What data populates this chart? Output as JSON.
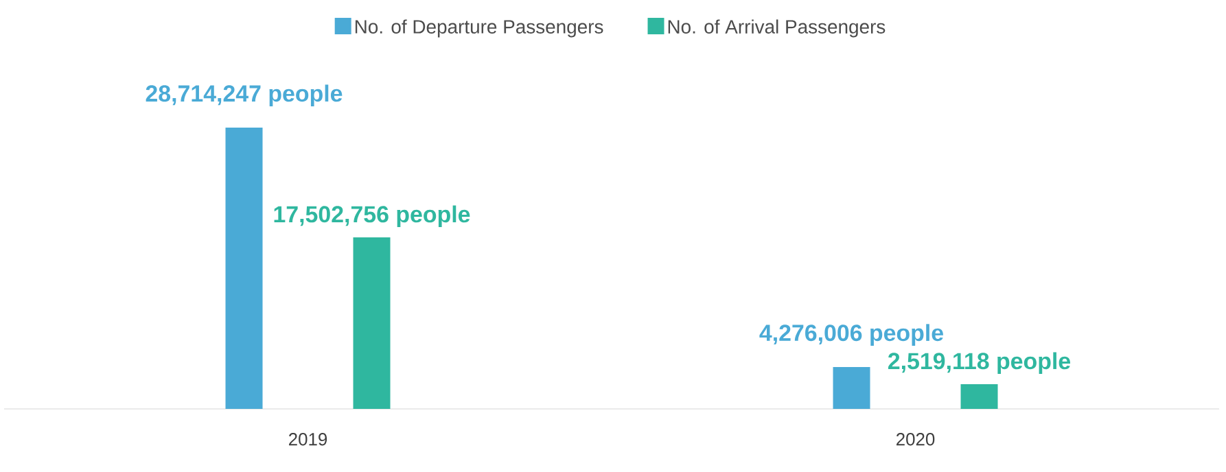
{
  "chart_data": {
    "type": "bar",
    "categories": [
      "2019",
      "2020"
    ],
    "series": [
      {
        "name": "No. of Departure Passengers",
        "color": "#4aaad6",
        "values": [
          28714247,
          4276006
        ],
        "value_labels": [
          "28,714,247 people",
          "4,276,006 people"
        ]
      },
      {
        "name": "No. of Arrival Passengers",
        "color": "#2fb79f",
        "values": [
          17502756,
          2519118
        ],
        "value_labels": [
          "17,502,756 people",
          "2,519,118 people"
        ]
      }
    ],
    "legend": "top"
  }
}
